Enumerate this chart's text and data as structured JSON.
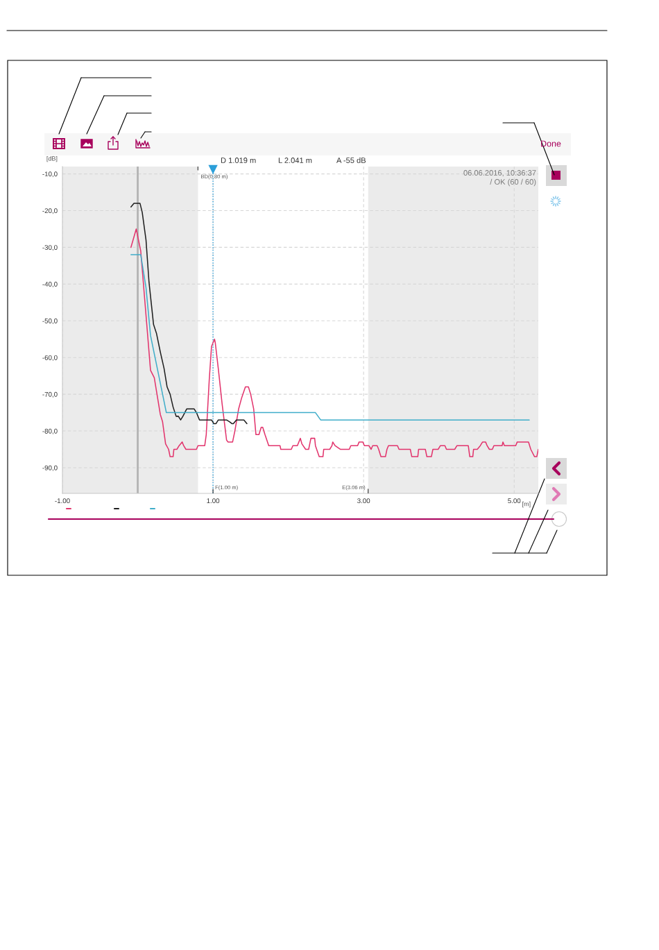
{
  "chart_data": {
    "type": "line",
    "xlim": [
      -1,
      5.32
    ],
    "ylim": [
      -97,
      -8
    ],
    "xticks": [
      {
        "value": -1,
        "label": "-1.00"
      },
      {
        "value": 1,
        "label": "1.00"
      },
      {
        "value": 3,
        "label": "3.00"
      },
      {
        "value": 5,
        "label": "5.00"
      }
    ],
    "yticks": [
      {
        "value": -10,
        "label": "-10,0"
      },
      {
        "value": -20,
        "label": "-20,0"
      },
      {
        "value": -30,
        "label": "-30,0"
      },
      {
        "value": -40,
        "label": "-40,0"
      },
      {
        "value": -50,
        "label": "-50,0"
      },
      {
        "value": -60,
        "label": "-60,0"
      },
      {
        "value": -70,
        "label": "-70,0"
      },
      {
        "value": -80,
        "label": "-80,0"
      },
      {
        "value": -90,
        "label": "-90,0"
      }
    ],
    "xlabel": "[m]",
    "ylabel": "[dB]",
    "grid": true,
    "series": [
      {
        "color": "#e2336c",
        "x": [
          -0.09,
          -0.02,
          0.04,
          0.13,
          0.17,
          0.22,
          0.26,
          0.3,
          0.33,
          0.37,
          0.41,
          0.43,
          0.47,
          0.48,
          0.52,
          0.55,
          0.59,
          0.61,
          0.64,
          0.78,
          0.8,
          0.89,
          0.91,
          0.95,
          0.98,
          1.02,
          1.03,
          1.07,
          1.12,
          1.18,
          1.2,
          1.26,
          1.29,
          1.34,
          1.38,
          1.43,
          1.47,
          1.5,
          1.54,
          1.57,
          1.61,
          1.64,
          1.66,
          1.69,
          1.74,
          1.89,
          1.9,
          2.04,
          2.06,
          2.12,
          2.16,
          2.18,
          2.23,
          2.27,
          2.3,
          2.35,
          2.36,
          2.41,
          2.46,
          2.47,
          2.55,
          2.58,
          2.59,
          2.62,
          2.69,
          2.81,
          2.83,
          2.92,
          2.94,
          2.99,
          3.01,
          3.07,
          3.1,
          3.12,
          3.18,
          3.2,
          3.23,
          3.29,
          3.31,
          3.33,
          3.45,
          3.47,
          3.62,
          3.64,
          3.72,
          3.73,
          3.82,
          3.84,
          3.9,
          3.92,
          3.99,
          4.02,
          4.08,
          4.1,
          4.21,
          4.24,
          4.39,
          4.41,
          4.45,
          4.46,
          4.51,
          4.55,
          4.58,
          4.62,
          4.64,
          4.67,
          4.71,
          4.73,
          4.84,
          4.85,
          4.87,
          5.02,
          5.04,
          5.19,
          5.22,
          5.27,
          5.3,
          5.32
        ],
        "values": [
          -30,
          -25,
          -31,
          -53.5,
          -63.5,
          -65.5,
          -70.5,
          -75.5,
          -77.5,
          -83.5,
          -85,
          -87,
          -87,
          -85,
          -85,
          -84,
          -83,
          -84,
          -85,
          -85,
          -84,
          -84,
          -81,
          -66,
          -57,
          -55,
          -56,
          -63,
          -72.5,
          -82.5,
          -83,
          -83,
          -80,
          -74,
          -71,
          -68,
          -68,
          -70,
          -74,
          -81,
          -81,
          -79,
          -79,
          -81,
          -84,
          -84,
          -85,
          -85,
          -84,
          -84,
          -82,
          -83.5,
          -85,
          -85,
          -82,
          -82,
          -84,
          -87,
          -87,
          -85,
          -85,
          -84,
          -83,
          -84,
          -85,
          -85,
          -84,
          -84,
          -83,
          -83,
          -84,
          -84,
          -85,
          -84,
          -84,
          -85,
          -87,
          -87,
          -85,
          -84,
          -84,
          -85,
          -85,
          -87,
          -87,
          -85,
          -85,
          -87,
          -87,
          -85,
          -85,
          -84,
          -84,
          -85,
          -85,
          -84,
          -84,
          -87,
          -87,
          -85,
          -85,
          -84,
          -83,
          -83,
          -84,
          -85,
          -85,
          -84,
          -84,
          -83,
          -84,
          -84,
          -83,
          -83,
          -85,
          -87,
          -87,
          -85
        ]
      },
      {
        "color": "#1e1e1e",
        "x": [
          -0.09,
          -0.05,
          0.03,
          0.06,
          0.11,
          0.15,
          0.21,
          0.25,
          0.3,
          0.35,
          0.39,
          0.43,
          0.47,
          0.51,
          0.54,
          0.57,
          0.6,
          0.65,
          0.75,
          0.78,
          0.82,
          0.98,
          1.01,
          1.04,
          1.07,
          1.18,
          1.22,
          1.25,
          1.27,
          1.31,
          1.41,
          1.45
        ],
        "values": [
          -19,
          -18,
          -18,
          -20.5,
          -28,
          -39.5,
          -51,
          -53.5,
          -58.5,
          -63,
          -68,
          -70,
          -73.5,
          -76,
          -76,
          -77,
          -76,
          -74,
          -74,
          -75,
          -77,
          -77,
          -78,
          -78,
          -77,
          -77,
          -77.5,
          -78,
          -78,
          -77,
          -77,
          -78
        ]
      },
      {
        "color": "#3fadc9",
        "x": [
          -0.09,
          0.04,
          0.11,
          0.17,
          0.23,
          0.29,
          0.34,
          0.38,
          2.36,
          2.43,
          5.2
        ],
        "values": [
          -32,
          -32,
          -41,
          -54,
          -60,
          -66,
          -71,
          -75,
          -75,
          -77,
          -77
        ]
      }
    ],
    "bands": [
      {
        "axis": "x",
        "from": -1,
        "to": 0.8,
        "label": "BD(0.80 m)",
        "color": "#ebebeb"
      },
      {
        "axis": "x",
        "from": 3.06,
        "to": 5.32,
        "label": "E(3.06 m)",
        "color": "#ebebeb"
      }
    ],
    "ref_lines": [
      {
        "axis": "x",
        "value": 0,
        "color": "#b3b3b3",
        "line_style": "solid"
      },
      {
        "axis": "x",
        "value": 1,
        "label": "F(1.00 m)",
        "color": "#2c9fd9",
        "line_style": "dotted"
      }
    ],
    "annotations": [
      "D 1.019 m",
      "L 2.041 m",
      "A -55 dB",
      "06.06.2016, 10:36:37",
      "/ OK (60 / 60)",
      "Done"
    ]
  }
}
